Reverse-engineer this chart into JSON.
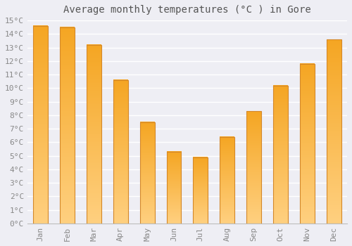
{
  "title": "Average monthly temperatures (°C ) in Gore",
  "months": [
    "Jan",
    "Feb",
    "Mar",
    "Apr",
    "May",
    "Jun",
    "Jul",
    "Aug",
    "Sep",
    "Oct",
    "Nov",
    "Dec"
  ],
  "values": [
    14.6,
    14.5,
    13.2,
    10.6,
    7.5,
    5.3,
    4.9,
    6.4,
    8.3,
    10.2,
    11.8,
    13.6
  ],
  "bar_color_top": "#F5A623",
  "bar_color_bottom": "#FFD080",
  "bar_edge_color": "#D4882A",
  "background_color": "#EEEEF4",
  "plot_bg_color": "#EEEEF4",
  "grid_color": "#FFFFFF",
  "title_color": "#555555",
  "tick_color": "#888888",
  "ylim": [
    0,
    15
  ],
  "bar_width": 0.55,
  "title_fontsize": 10,
  "tick_fontsize": 8
}
